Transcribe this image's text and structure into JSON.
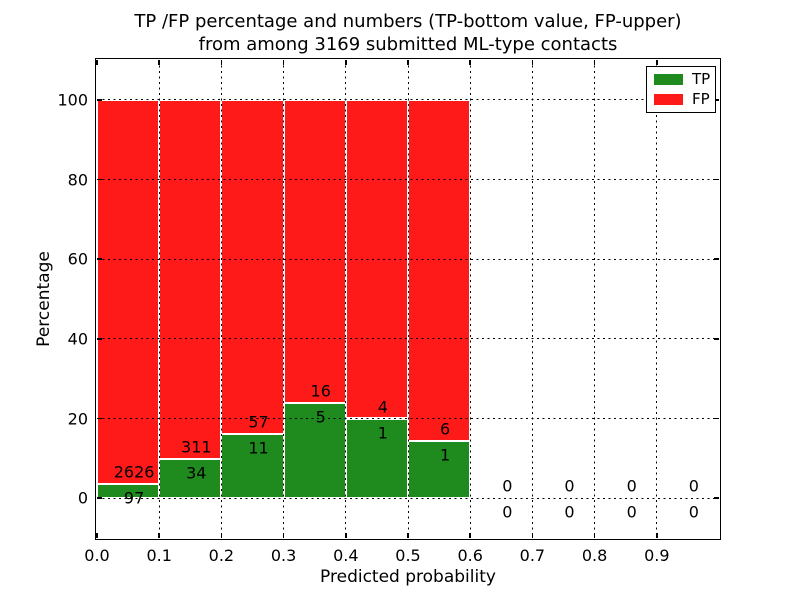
{
  "title": {
    "line1": "TP /FP percentage and numbers (TP-bottom value, FP-upper)",
    "line2": "from among 3169 submitted ML-type contacts"
  },
  "chart_data": {
    "type": "bar",
    "stacked": true,
    "total_contacts": 3169,
    "xlabel": "Predicted probability",
    "ylabel": "Percentage",
    "xlim": [
      0.0,
      1.0
    ],
    "ylim": [
      -10,
      110
    ],
    "grid": "dotted",
    "bin_width": 0.1,
    "bin_starts": [
      0.0,
      0.1,
      0.2,
      0.3,
      0.4,
      0.5,
      0.6,
      0.7,
      0.8,
      0.9
    ],
    "xticks": [
      0.0,
      0.1,
      0.2,
      0.3,
      0.4,
      0.5,
      0.6,
      0.7,
      0.8,
      0.9
    ],
    "xtick_labels": [
      "0.0",
      "0.1",
      "0.2",
      "0.3",
      "0.4",
      "0.5",
      "0.6",
      "0.7",
      "0.8",
      "0.9"
    ],
    "yticks": [
      0,
      20,
      40,
      60,
      80,
      100
    ],
    "ytick_labels": [
      "0",
      "20",
      "40",
      "60",
      "80",
      "100"
    ],
    "series": [
      {
        "name": "TP",
        "color": "#1f8b1f",
        "counts": [
          97,
          34,
          11,
          5,
          1,
          1,
          0,
          0,
          0,
          0
        ],
        "percent": [
          3.56,
          9.86,
          16.18,
          23.81,
          20.0,
          14.29,
          0,
          0,
          0,
          0
        ]
      },
      {
        "name": "FP",
        "color": "#ff1a1a",
        "counts": [
          2626,
          311,
          57,
          16,
          4,
          6,
          0,
          0,
          0,
          0
        ],
        "percent": [
          96.44,
          90.14,
          83.82,
          76.19,
          80.0,
          85.71,
          0,
          0,
          0,
          0
        ]
      }
    ],
    "legend": {
      "position": "upper right",
      "entries": [
        "TP",
        "FP"
      ]
    }
  }
}
